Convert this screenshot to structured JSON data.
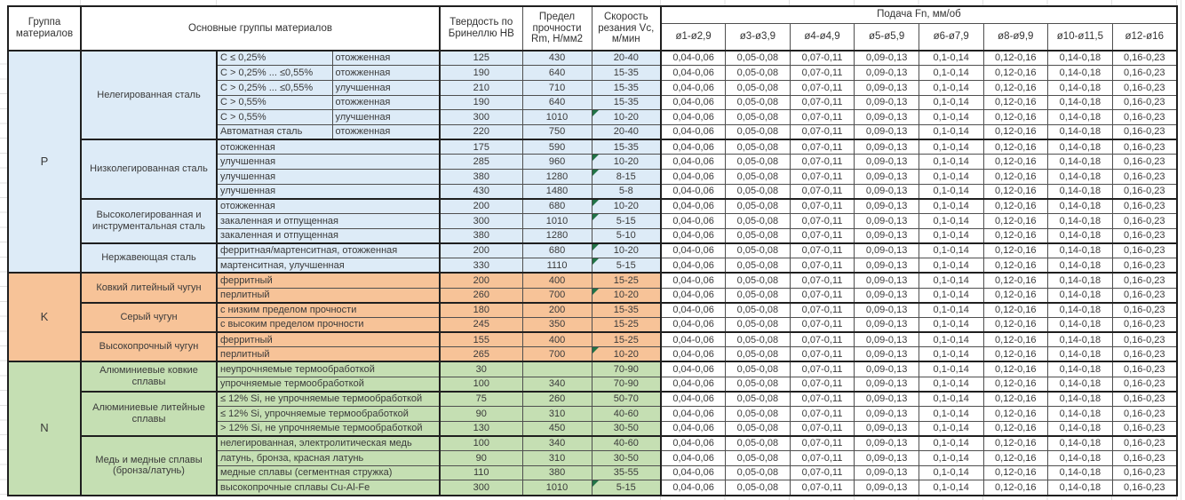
{
  "header": {
    "col_group": "Группа материалов",
    "col_main": "Основные группы материалов",
    "col_hb": "Твердость по Бринеллю HB",
    "col_rm": "Предел прочности Rm, Н/мм2",
    "col_vc": "Скорость резания Vc, м/мин",
    "feed_title": "Подача Fn, мм/об",
    "feed_cols": [
      "ø1-ø2,9",
      "ø3-ø3,9",
      "ø4-ø4,9",
      "ø5-ø5,9",
      "ø6-ø7,9",
      "ø8-ø9,9",
      "ø10-ø11,5",
      "ø12-ø16"
    ]
  },
  "feed_values": [
    "0,04-0,06",
    "0,05-0,08",
    "0,07-0,11",
    "0,09-0,13",
    "0,1-0,14",
    "0,12-0,16",
    "0,14-0,18",
    "0,16-0,23"
  ],
  "flag_color": "#217346",
  "groups": [
    {
      "letter": "P",
      "color": "#DDEBF7",
      "subgroups": [
        {
          "name": "Нелегированная сталь",
          "rows": [
            {
              "class": "C ≤ 0,25%",
              "state": "отожженная",
              "hb": "125",
              "rm": "430",
              "vc": "20-40",
              "flag": false
            },
            {
              "class": "C > 0,25% ... ≤0,55%",
              "state": "отожженная",
              "hb": "190",
              "rm": "640",
              "vc": "15-35",
              "flag": false
            },
            {
              "class": "C > 0,25% ... ≤0,55%",
              "state": "улучшенная",
              "hb": "210",
              "rm": "710",
              "vc": "15-35",
              "flag": false
            },
            {
              "class": "C > 0,55%",
              "state": "отожженная",
              "hb": "190",
              "rm": "640",
              "vc": "15-35",
              "flag": false
            },
            {
              "class": "C > 0,55%",
              "state": "улучшенная",
              "hb": "300",
              "rm": "1010",
              "vc": "10-20",
              "flag": true
            },
            {
              "class": "Автоматная сталь",
              "state": "отожженная",
              "hb": "220",
              "rm": "750",
              "vc": "20-40",
              "flag": false
            }
          ]
        },
        {
          "name": "Низколегированная сталь",
          "rows": [
            {
              "desc": "отожженная",
              "hb": "175",
              "rm": "590",
              "vc": "15-35",
              "flag": false
            },
            {
              "desc": "улучшенная",
              "hb": "285",
              "rm": "960",
              "vc": "10-20",
              "flag": true
            },
            {
              "desc": "улучшенная",
              "hb": "380",
              "rm": "1280",
              "vc": "8-15",
              "flag": true
            },
            {
              "desc": "улучшенная",
              "hb": "430",
              "rm": "1480",
              "vc": "5-8",
              "flag": false
            }
          ]
        },
        {
          "name": "Высоколегированная и инструментальная сталь",
          "rows": [
            {
              "desc": "отожженная",
              "hb": "200",
              "rm": "680",
              "vc": "10-20",
              "flag": true
            },
            {
              "desc": "закаленная и отпущенная",
              "hb": "300",
              "rm": "1010",
              "vc": "5-15",
              "flag": true
            },
            {
              "desc": "закаленная и отпущенная",
              "hb": "380",
              "rm": "1280",
              "vc": "5-10",
              "flag": false
            }
          ]
        },
        {
          "name": "Нержавеющая сталь",
          "rows": [
            {
              "desc": "ферритная/мартенситная, отожженная",
              "hb": "200",
              "rm": "680",
              "vc": "10-20",
              "flag": true
            },
            {
              "desc": "мартенситная, улучшенная",
              "hb": "330",
              "rm": "1110",
              "vc": "5-15",
              "flag": true
            }
          ]
        }
      ]
    },
    {
      "letter": "K",
      "color": "#F7C398",
      "subgroups": [
        {
          "name": "Ковкий литейный чугун",
          "rows": [
            {
              "desc": "ферритный",
              "hb": "200",
              "rm": "400",
              "vc": "15-25",
              "flag": false
            },
            {
              "desc": "перлитный",
              "hb": "260",
              "rm": "700",
              "vc": "10-20",
              "flag": true
            }
          ]
        },
        {
          "name": "Серый чугун",
          "rows": [
            {
              "desc": "с низким пределом прочности",
              "hb": "180",
              "rm": "200",
              "vc": "15-35",
              "flag": false
            },
            {
              "desc": "с высоким пределом прочности",
              "hb": "245",
              "rm": "350",
              "vc": "15-25",
              "flag": false
            }
          ]
        },
        {
          "name": "Высокопрочный чугун",
          "rows": [
            {
              "desc": "ферритный",
              "hb": "155",
              "rm": "400",
              "vc": "15-25",
              "flag": false
            },
            {
              "desc": "перлитный",
              "hb": "265",
              "rm": "700",
              "vc": "10-20",
              "flag": true
            }
          ]
        }
      ]
    },
    {
      "letter": "N",
      "color": "#C5DFB3",
      "subgroups": [
        {
          "name": "Алюминиевые ковкие сплавы",
          "rows": [
            {
              "desc": "неупрочняемые термообработкой",
              "hb": "30",
              "rm": "",
              "vc": "70-90",
              "flag": false
            },
            {
              "desc": "упрочняемые термообработкой",
              "hb": "100",
              "rm": "340",
              "vc": "70-90",
              "flag": false
            }
          ]
        },
        {
          "name": "Алюминиевые литейные сплавы",
          "rows": [
            {
              "desc": "≤ 12% Si, не упрочняемые термообработкой",
              "hb": "75",
              "rm": "260",
              "vc": "50-70",
              "flag": false
            },
            {
              "desc": "≤ 12% Si, упрочняемые термообработкой",
              "hb": "90",
              "rm": "310",
              "vc": "40-60",
              "flag": false
            },
            {
              "desc": "> 12% Si, не упрочняемые термообработкой",
              "hb": "130",
              "rm": "450",
              "vc": "30-50",
              "flag": false
            }
          ]
        },
        {
          "name": "Медь и медные сплавы (бронза/латунь)",
          "rows": [
            {
              "desc": "нелегированная, электролитическая медь",
              "hb": "100",
              "rm": "340",
              "vc": "40-60",
              "flag": false
            },
            {
              "desc": "латунь, бронза, красная латунь",
              "hb": "90",
              "rm": "310",
              "vc": "30-50",
              "flag": false
            },
            {
              "desc": "медные сплавы (сегментная стружка)",
              "hb": "110",
              "rm": "380",
              "vc": "35-55",
              "flag": false
            },
            {
              "desc": "высокопрочные сплавы Cu-Al-Fe",
              "hb": "300",
              "rm": "1010",
              "vc": "5-15",
              "flag": true
            }
          ]
        }
      ]
    }
  ]
}
